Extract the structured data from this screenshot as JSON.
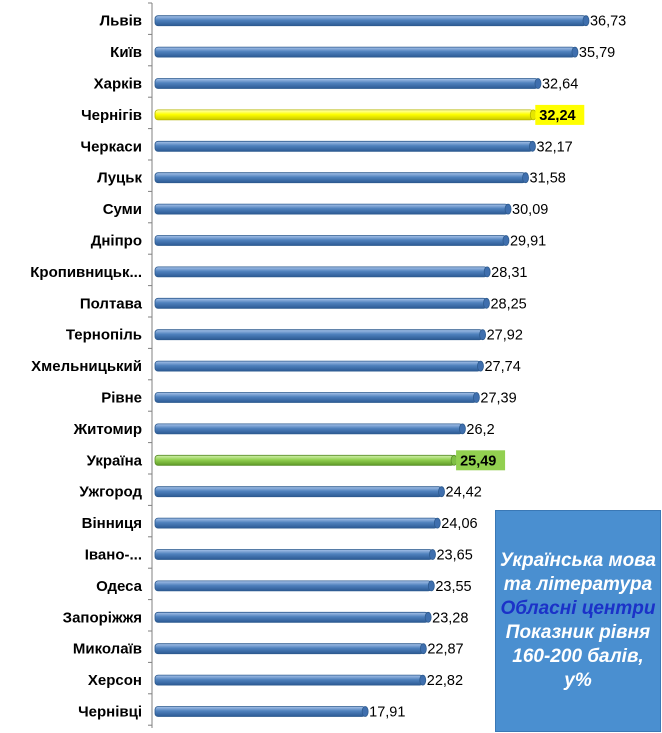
{
  "chart_data": {
    "type": "bar",
    "orientation": "horizontal",
    "categories": [
      "Львів",
      "Київ",
      "Харків",
      "Чернігів",
      "Черкаси",
      "Луцьк",
      "Суми",
      "Дніпро",
      "Кропивницьк...",
      "Полтава",
      "Тернопіль",
      "Хмельницький",
      "Рівне",
      "Житомир",
      "Україна",
      "Ужгород",
      "Вінниця",
      "Івано-...",
      "Одеса",
      "Запоріжжя",
      "Миколаїв",
      "Херсон",
      "Чернівці"
    ],
    "values": [
      36.73,
      35.79,
      32.64,
      32.24,
      32.17,
      31.58,
      30.09,
      29.91,
      28.31,
      28.25,
      27.92,
      27.74,
      27.39,
      26.2,
      25.49,
      24.42,
      24.06,
      23.65,
      23.55,
      23.28,
      22.87,
      22.82,
      17.91
    ],
    "value_labels": [
      "36,73",
      "35,79",
      "32,64",
      "32,24",
      "32,17",
      "31,58",
      "30,09",
      "29,91",
      "28,31",
      "28,25",
      "27,92",
      "27,74",
      "27,39",
      "26,2",
      "25,49",
      "24,42",
      "24,06",
      "23,65",
      "23,55",
      "23,28",
      "22,87",
      "22,82",
      "17,91"
    ],
    "highlights": {
      "Чернігів": "#ffff00",
      "Україна": "#92d050"
    },
    "bar_color": "#4f81bd",
    "xlim": [
      0,
      37.5
    ],
    "grid": false,
    "legend_placement": "bottom-right"
  },
  "legend": {
    "line1": "Українська мова та література",
    "line2": "Обласні центри",
    "line3": "Показник рівня 160-200 балів, у%"
  }
}
